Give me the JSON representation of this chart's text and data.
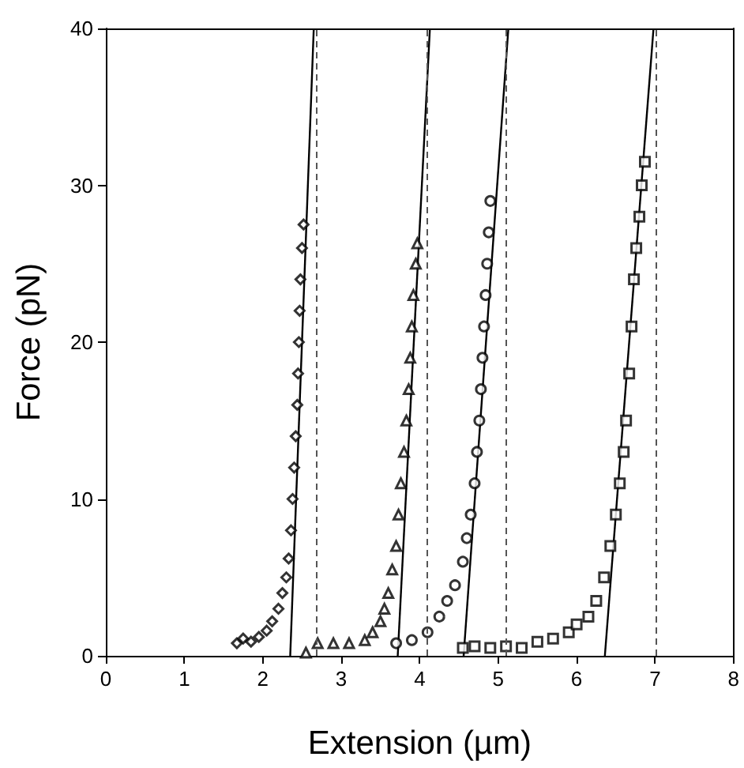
{
  "chart_data": {
    "type": "scatter",
    "xlabel": "Extension (µm)",
    "ylabel": "Force (pN)",
    "xlim": [
      0,
      8
    ],
    "xticks": [
      0,
      1,
      2,
      3,
      4,
      5,
      6,
      7,
      8
    ],
    "ylim": [
      0,
      40
    ],
    "yticks": [
      0,
      10,
      20,
      30,
      40
    ],
    "grid": false,
    "series": [
      {
        "marker": "diamond",
        "color": "#000000",
        "x": [
          1.67,
          1.75,
          1.85,
          1.95,
          2.05,
          2.12,
          2.2,
          2.25,
          2.3,
          2.33,
          2.36,
          2.38,
          2.4,
          2.42,
          2.44,
          2.45,
          2.46,
          2.47,
          2.48,
          2.5,
          2.52
        ],
        "values": [
          0.8,
          1.1,
          0.9,
          1.2,
          1.6,
          2.2,
          3,
          4,
          5,
          6.2,
          8,
          10,
          12,
          14,
          16,
          18,
          20,
          22,
          24,
          26,
          27.5
        ]
      },
      {
        "marker": "triangle",
        "color": "#000000",
        "x": [
          2.55,
          2.7,
          2.9,
          3.1,
          3.3,
          3.4,
          3.5,
          3.55,
          3.6,
          3.65,
          3.7,
          3.73,
          3.76,
          3.8,
          3.83,
          3.86,
          3.88,
          3.9,
          3.92,
          3.95,
          3.97
        ],
        "values": [
          0.2,
          0.8,
          0.8,
          0.8,
          1,
          1.5,
          2.2,
          3,
          4,
          5.5,
          7,
          9,
          11,
          13,
          15,
          17,
          19,
          21,
          23,
          25,
          26.3
        ]
      },
      {
        "marker": "circle",
        "color": "#000000",
        "x": [
          3.7,
          3.9,
          4.1,
          4.25,
          4.35,
          4.45,
          4.55,
          4.6,
          4.65,
          4.7,
          4.73,
          4.76,
          4.78,
          4.8,
          4.82,
          4.84,
          4.86,
          4.88,
          4.9
        ],
        "values": [
          0.8,
          1,
          1.5,
          2.5,
          3.5,
          4.5,
          6,
          7.5,
          9,
          11,
          13,
          15,
          17,
          19,
          21,
          23,
          25,
          27,
          29
        ]
      },
      {
        "marker": "square",
        "color": "#000000",
        "x": [
          4.55,
          4.7,
          4.9,
          5.1,
          5.3,
          5.5,
          5.7,
          5.9,
          6.0,
          6.15,
          6.25,
          6.35,
          6.43,
          6.5,
          6.55,
          6.6,
          6.63,
          6.67,
          6.7,
          6.73,
          6.76,
          6.8,
          6.83,
          6.87
        ],
        "values": [
          0.5,
          0.6,
          0.5,
          0.6,
          0.5,
          0.9,
          1.1,
          1.5,
          2,
          2.5,
          3.5,
          5,
          7,
          9,
          11,
          13,
          15,
          18,
          21,
          24,
          26,
          28,
          30,
          31.5
        ]
      },
      {
        "type": "line",
        "marker": "none",
        "color": "#000000",
        "x": [
          2.35,
          2.65
        ],
        "values": [
          0,
          40
        ]
      },
      {
        "type": "line",
        "marker": "none",
        "color": "#000000",
        "x": [
          3.72,
          4.13
        ],
        "values": [
          0,
          40
        ]
      },
      {
        "type": "line",
        "marker": "none",
        "color": "#000000",
        "x": [
          4.56,
          5.13
        ],
        "values": [
          0,
          40
        ]
      },
      {
        "type": "line",
        "marker": "none",
        "color": "#000000",
        "x": [
          6.36,
          6.98
        ],
        "values": [
          0,
          40
        ]
      }
    ],
    "ref_lines": [
      {
        "axis": "x",
        "value": 2.69,
        "color": "#555555",
        "line_style": "dashed"
      },
      {
        "axis": "x",
        "value": 4.1,
        "color": "#555555",
        "line_style": "dashed"
      },
      {
        "axis": "x",
        "value": 5.09,
        "color": "#555555",
        "line_style": "dashed"
      },
      {
        "axis": "x",
        "value": 7.02,
        "color": "#555555",
        "line_style": "dashed"
      }
    ]
  }
}
